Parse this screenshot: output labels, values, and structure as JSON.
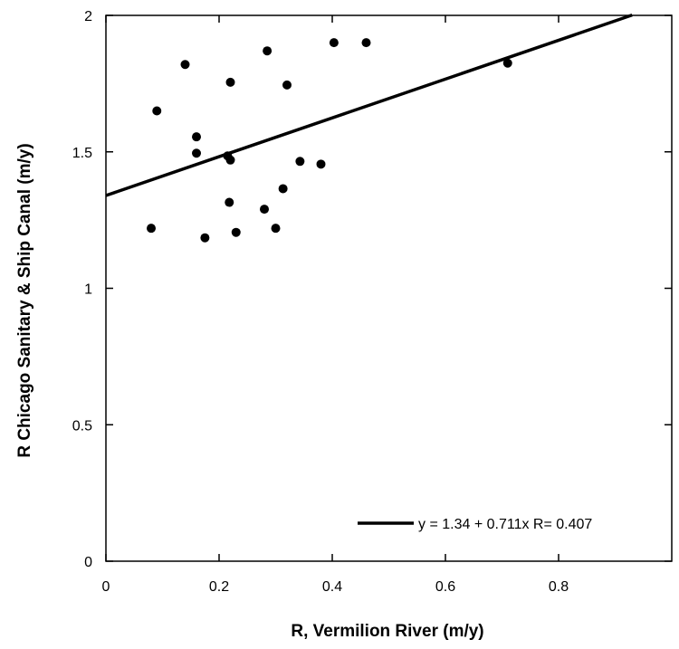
{
  "chart_data": {
    "type": "scatter",
    "xlabel": "R, Vermilion River (m/y)",
    "ylabel": "R Chicago Sanitary & Ship Canal (m/y)",
    "xlim": [
      0,
      1.0
    ],
    "ylim": [
      0,
      2
    ],
    "xticks": [
      0,
      0.2,
      0.4,
      0.6,
      0.8
    ],
    "xtick_labels": [
      "0",
      "0.2",
      "0.4",
      "0.6",
      "0.8"
    ],
    "yticks": [
      0,
      0.5,
      1,
      1.5,
      2
    ],
    "ytick_labels": [
      "0",
      "0.5",
      "1",
      "1.5",
      "2"
    ],
    "grid": false,
    "legend_position": "bottom-right",
    "series": [
      {
        "points": [
          {
            "x": 0.08,
            "y": 1.22
          },
          {
            "x": 0.09,
            "y": 1.65
          },
          {
            "x": 0.14,
            "y": 1.82
          },
          {
            "x": 0.16,
            "y": 1.555
          },
          {
            "x": 0.16,
            "y": 1.495
          },
          {
            "x": 0.175,
            "y": 1.185
          },
          {
            "x": 0.215,
            "y": 1.485
          },
          {
            "x": 0.218,
            "y": 1.315
          },
          {
            "x": 0.22,
            "y": 1.47
          },
          {
            "x": 0.22,
            "y": 1.755
          },
          {
            "x": 0.23,
            "y": 1.205
          },
          {
            "x": 0.28,
            "y": 1.29
          },
          {
            "x": 0.285,
            "y": 1.87
          },
          {
            "x": 0.3,
            "y": 1.22
          },
          {
            "x": 0.313,
            "y": 1.365
          },
          {
            "x": 0.32,
            "y": 1.745
          },
          {
            "x": 0.343,
            "y": 1.465
          },
          {
            "x": 0.38,
            "y": 1.455
          },
          {
            "x": 0.403,
            "y": 1.9
          },
          {
            "x": 0.46,
            "y": 1.9
          },
          {
            "x": 0.71,
            "y": 1.825
          }
        ]
      }
    ],
    "fit": {
      "intercept": 1.34,
      "slope": 0.711,
      "x_range": [
        0,
        0.93
      ],
      "legend_label": "y = 1.34 + 0.711x   R= 0.407"
    }
  }
}
